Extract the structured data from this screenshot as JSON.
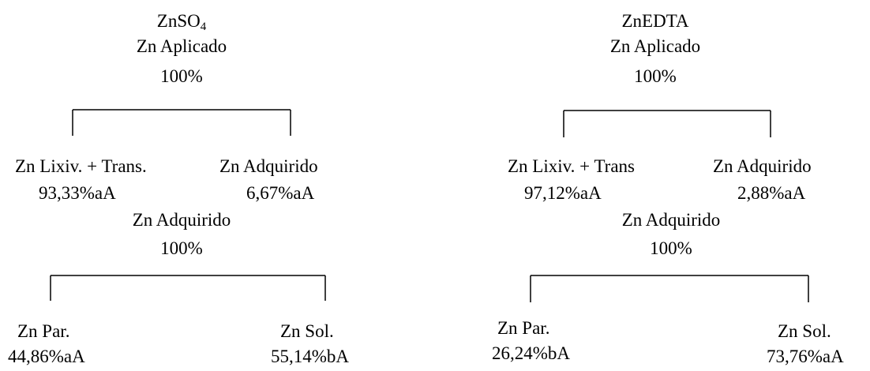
{
  "left": {
    "title_main": "ZnSO",
    "title_sub": "4",
    "applied_label": "Zn Aplicado",
    "applied_value": "100%",
    "branch1": {
      "left_label": "Zn Lixiv. + Trans.",
      "left_value": "93,33%aA",
      "right_label": "Zn Adquirido",
      "right_value": "6,67%aA"
    },
    "acquired_label": "Zn Adquirido",
    "acquired_value": "100%",
    "branch2": {
      "left_label": "Zn Par.",
      "left_value": "44,86%aA",
      "right_label": "Zn Sol.",
      "right_value": "55,14%bA"
    }
  },
  "right": {
    "title_main": "ZnEDTA",
    "applied_label": "Zn Aplicado",
    "applied_value": "100%",
    "branch1": {
      "left_label": "Zn Lixiv. + Trans",
      "left_value": "97,12%aA",
      "right_label": "Zn Adquirido",
      "right_value": "2,88%aA"
    },
    "acquired_label": "Zn Adquirido",
    "acquired_value": "100%",
    "branch2": {
      "left_label": "Zn Par.",
      "left_value": "26,24%bA",
      "right_label": "Zn Sol.",
      "right_value": "73,76%aA"
    }
  }
}
